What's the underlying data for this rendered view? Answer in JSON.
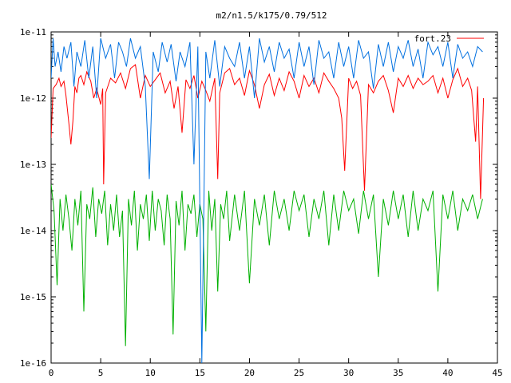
{
  "chart_data": {
    "type": "line",
    "title": "m2/n1.5/k175/0.79/512",
    "xlabel": "",
    "ylabel": "",
    "xlim": [
      0,
      45
    ],
    "ylim": [
      1e-16,
      1e-11
    ],
    "yscale": "log",
    "grid": false,
    "legend": "top-right",
    "x_ticks": [
      0,
      5,
      10,
      15,
      20,
      25,
      30,
      35,
      40,
      45
    ],
    "x_tick_labels": [
      "0",
      "5",
      "10",
      "15",
      "20",
      "25",
      "30",
      "35",
      "40",
      "45"
    ],
    "y_ticks": [
      1e-16,
      1e-15,
      1e-14,
      1e-13,
      1e-12,
      1e-11
    ],
    "y_tick_labels": [
      "1e-16",
      "1e-15",
      "1e-14",
      "1e-13",
      "1e-12",
      "1e-11"
    ],
    "series": [
      {
        "name": "fort.23",
        "color": "#ff0000",
        "x": [
          0.0,
          0.2,
          0.5,
          0.8,
          1.0,
          1.3,
          1.5,
          1.8,
          2.0,
          2.2,
          2.4,
          2.6,
          2.8,
          3.0,
          3.3,
          3.6,
          4.0,
          4.3,
          4.6,
          5.0,
          5.2,
          5.3,
          5.5,
          6.0,
          6.5,
          7.0,
          7.5,
          8.0,
          8.5,
          9.0,
          9.5,
          10.0,
          10.5,
          11.0,
          11.5,
          12.0,
          12.4,
          12.8,
          13.2,
          13.6,
          14.0,
          14.4,
          14.8,
          15.2,
          15.6,
          16.0,
          16.5,
          16.8,
          17.0,
          17.5,
          18.0,
          18.5,
          19.0,
          19.5,
          20.0,
          20.5,
          21.0,
          21.5,
          22.0,
          22.5,
          23.0,
          23.5,
          24.0,
          24.5,
          25.0,
          25.5,
          26.0,
          26.5,
          27.0,
          27.5,
          28.0,
          28.5,
          29.0,
          29.3,
          29.6,
          30.0,
          30.4,
          30.8,
          31.2,
          31.6,
          32.0,
          32.5,
          33.0,
          33.5,
          34.0,
          34.5,
          35.0,
          35.5,
          36.0,
          36.5,
          37.0,
          37.5,
          38.0,
          38.5,
          39.0,
          39.5,
          40.0,
          40.5,
          41.0,
          41.5,
          42.0,
          42.4,
          42.8,
          43.0,
          43.3,
          43.6
        ],
        "y": [
          2.5e-13,
          1.4e-12,
          1.6e-12,
          2e-12,
          1.5e-12,
          1.8e-12,
          1.1e-12,
          4e-13,
          2e-13,
          4.5e-13,
          1.5e-12,
          1.2e-12,
          2e-12,
          2.2e-12,
          1.6e-12,
          2.5e-12,
          1.8e-12,
          1e-12,
          1.4e-12,
          8e-13,
          1.4e-12,
          5e-14,
          1.2e-12,
          2e-12,
          1.7e-12,
          2.4e-12,
          1.4e-12,
          2.8e-12,
          3.2e-12,
          1e-12,
          2.2e-12,
          1.5e-12,
          1.9e-12,
          2.4e-12,
          1.2e-12,
          1.8e-12,
          7e-13,
          1.5e-12,
          3e-13,
          1.9e-12,
          1.4e-12,
          2.2e-12,
          1e-12,
          1.8e-12,
          1.3e-12,
          9e-13,
          2e-12,
          6e-14,
          1.2e-12,
          2.4e-12,
          2.8e-12,
          1.6e-12,
          2e-12,
          1.1e-12,
          2.6e-12,
          1.6e-12,
          7e-13,
          1.6e-12,
          2.3e-12,
          1.1e-12,
          2e-12,
          1.3e-12,
          2.5e-12,
          1.8e-12,
          1e-12,
          2.2e-12,
          1.5e-12,
          2e-12,
          1.2e-12,
          2.4e-12,
          1.8e-12,
          1.4e-12,
          1e-12,
          5e-13,
          8e-14,
          2e-12,
          1.4e-12,
          1.8e-12,
          1.1e-12,
          4e-14,
          1.6e-12,
          1.2e-12,
          1.8e-12,
          2.2e-12,
          1.3e-12,
          6e-13,
          2e-12,
          1.5e-12,
          2.2e-12,
          1.4e-12,
          2e-12,
          1.6e-12,
          1.8e-12,
          2.2e-12,
          1.2e-12,
          2e-12,
          1e-12,
          1.9e-12,
          2.8e-12,
          1.5e-12,
          2e-12,
          1.3e-12,
          2.2e-13,
          1.5e-12,
          3e-14,
          1e-12
        ],
        "line_style": "solid"
      },
      {
        "name": "",
        "color": "#0070e0",
        "x": [
          0.0,
          0.2,
          0.4,
          0.7,
          1.0,
          1.3,
          1.6,
          2.0,
          2.3,
          2.6,
          3.0,
          3.4,
          3.8,
          4.2,
          4.6,
          5.0,
          5.5,
          6.0,
          6.4,
          6.8,
          7.2,
          7.6,
          8.0,
          8.5,
          9.0,
          9.5,
          9.9,
          10.3,
          10.8,
          11.2,
          11.7,
          12.1,
          12.6,
          13.0,
          13.5,
          14.0,
          14.4,
          14.8,
          15.2,
          15.6,
          16.0,
          16.5,
          17.0,
          17.5,
          18.0,
          18.5,
          19.0,
          19.5,
          20.0,
          20.5,
          21.0,
          21.5,
          22.0,
          22.5,
          23.0,
          23.5,
          24.0,
          24.5,
          25.0,
          25.5,
          26.0,
          26.5,
          27.0,
          27.5,
          28.0,
          28.5,
          29.0,
          29.5,
          30.0,
          30.5,
          31.0,
          31.5,
          32.0,
          32.5,
          33.0,
          33.5,
          34.0,
          34.5,
          35.0,
          35.5,
          36.0,
          36.5,
          37.0,
          37.5,
          38.0,
          38.5,
          39.0,
          39.5,
          40.0,
          40.5,
          41.0,
          41.5,
          42.0,
          42.5,
          43.0,
          43.5
        ],
        "y": [
          2e-12,
          8e-12,
          3e-12,
          5e-12,
          2.5e-12,
          6e-12,
          4e-12,
          7e-12,
          1.5e-12,
          5e-12,
          3e-12,
          7.5e-12,
          2e-12,
          6e-12,
          1e-12,
          8e-12,
          4e-12,
          6.5e-12,
          2e-12,
          7e-12,
          5e-12,
          3e-12,
          8e-12,
          4e-12,
          6e-12,
          1.5e-12,
          6e-14,
          5e-12,
          2.5e-12,
          7e-12,
          3.5e-12,
          6.5e-12,
          1.8e-12,
          5e-12,
          3e-12,
          7e-12,
          1e-13,
          6e-12,
          1e-16,
          5e-12,
          2e-12,
          7.5e-12,
          1.5e-12,
          6e-12,
          4e-12,
          3e-12,
          7e-12,
          2e-12,
          6e-12,
          1e-12,
          8e-12,
          3.5e-12,
          6e-12,
          2.5e-12,
          7e-12,
          4e-12,
          5.5e-12,
          2e-12,
          7e-12,
          3e-12,
          6e-12,
          1.6e-12,
          7.5e-12,
          4e-12,
          5e-12,
          2e-12,
          7e-12,
          3e-12,
          6e-12,
          2e-12,
          7.5e-12,
          4e-12,
          5e-12,
          1.4e-12,
          6.5e-12,
          3e-12,
          7e-12,
          2.5e-12,
          6e-12,
          4e-12,
          7.5e-12,
          3e-12,
          5.5e-12,
          2e-12,
          7e-12,
          4.5e-12,
          6e-12,
          3e-12,
          7e-12,
          2e-12,
          6.5e-12,
          4e-12,
          5e-12,
          3e-12,
          6e-12,
          5e-12
        ],
        "line_style": "solid"
      },
      {
        "name": "",
        "color": "#00b000",
        "x": [
          0.0,
          0.3,
          0.6,
          0.9,
          1.2,
          1.5,
          1.8,
          2.1,
          2.4,
          2.7,
          3.0,
          3.3,
          3.6,
          3.9,
          4.2,
          4.5,
          4.8,
          5.1,
          5.4,
          5.7,
          6.0,
          6.3,
          6.6,
          6.9,
          7.2,
          7.5,
          7.8,
          8.1,
          8.4,
          8.7,
          9.0,
          9.3,
          9.6,
          9.9,
          10.2,
          10.5,
          10.8,
          11.1,
          11.4,
          11.7,
          12.0,
          12.3,
          12.6,
          12.9,
          13.2,
          13.5,
          13.8,
          14.1,
          14.4,
          14.7,
          15.0,
          15.3,
          15.6,
          15.9,
          16.2,
          16.5,
          16.8,
          17.1,
          17.4,
          17.7,
          18.0,
          18.5,
          19.0,
          19.5,
          20.0,
          20.5,
          21.0,
          21.5,
          22.0,
          22.5,
          23.0,
          23.5,
          24.0,
          24.5,
          25.0,
          25.5,
          26.0,
          26.5,
          27.0,
          27.5,
          28.0,
          28.5,
          29.0,
          29.5,
          30.0,
          30.5,
          31.0,
          31.5,
          32.0,
          32.5,
          33.0,
          33.5,
          34.0,
          34.5,
          35.0,
          35.5,
          36.0,
          36.5,
          37.0,
          37.5,
          38.0,
          38.5,
          39.0,
          39.5,
          40.0,
          40.5,
          41.0,
          41.5,
          42.0,
          42.5,
          43.0,
          43.5
        ],
        "y": [
          5e-14,
          2e-14,
          1.5e-15,
          3e-14,
          1e-14,
          3.5e-14,
          1.5e-14,
          5e-15,
          3e-14,
          1.2e-14,
          4e-14,
          6e-16,
          2.5e-14,
          1.5e-14,
          4.5e-14,
          8e-15,
          3e-14,
          1.8e-14,
          4e-14,
          6e-15,
          2.5e-14,
          1e-14,
          3.5e-14,
          8e-15,
          2e-14,
          1.8e-16,
          3e-14,
          1.2e-14,
          4e-14,
          5e-15,
          2.5e-14,
          1.5e-14,
          3.5e-14,
          7e-15,
          4e-14,
          1e-14,
          3e-14,
          2e-14,
          6e-15,
          3.5e-14,
          1.5e-14,
          2.7e-16,
          2.8e-14,
          1.2e-14,
          4e-14,
          5e-15,
          2.5e-14,
          1.8e-14,
          3.5e-14,
          8e-15,
          2.5e-14,
          1.5e-14,
          3e-16,
          4e-14,
          1e-14,
          3e-14,
          1.2e-15,
          2.5e-14,
          1.5e-14,
          4e-14,
          7e-15,
          3.5e-14,
          1e-14,
          4e-14,
          1.6e-15,
          3e-14,
          1.2e-14,
          3.5e-14,
          6e-15,
          4e-14,
          1.5e-14,
          3e-14,
          1e-14,
          4e-14,
          2e-14,
          3.5e-14,
          8e-15,
          3e-14,
          1.5e-14,
          4e-14,
          6e-15,
          3.5e-14,
          1e-14,
          4e-14,
          2e-14,
          3e-14,
          9e-15,
          4e-14,
          1.5e-14,
          3.5e-14,
          2e-15,
          3e-14,
          1.2e-14,
          4e-14,
          1.5e-14,
          3.5e-14,
          8e-15,
          4e-14,
          1e-14,
          3e-14,
          2e-14,
          4e-14,
          1.2e-15,
          3.5e-14,
          1.5e-14,
          4e-14,
          1e-14,
          3e-14,
          2e-14,
          3.5e-14,
          1.5e-14,
          3e-14
        ],
        "line_style": "solid"
      }
    ]
  }
}
